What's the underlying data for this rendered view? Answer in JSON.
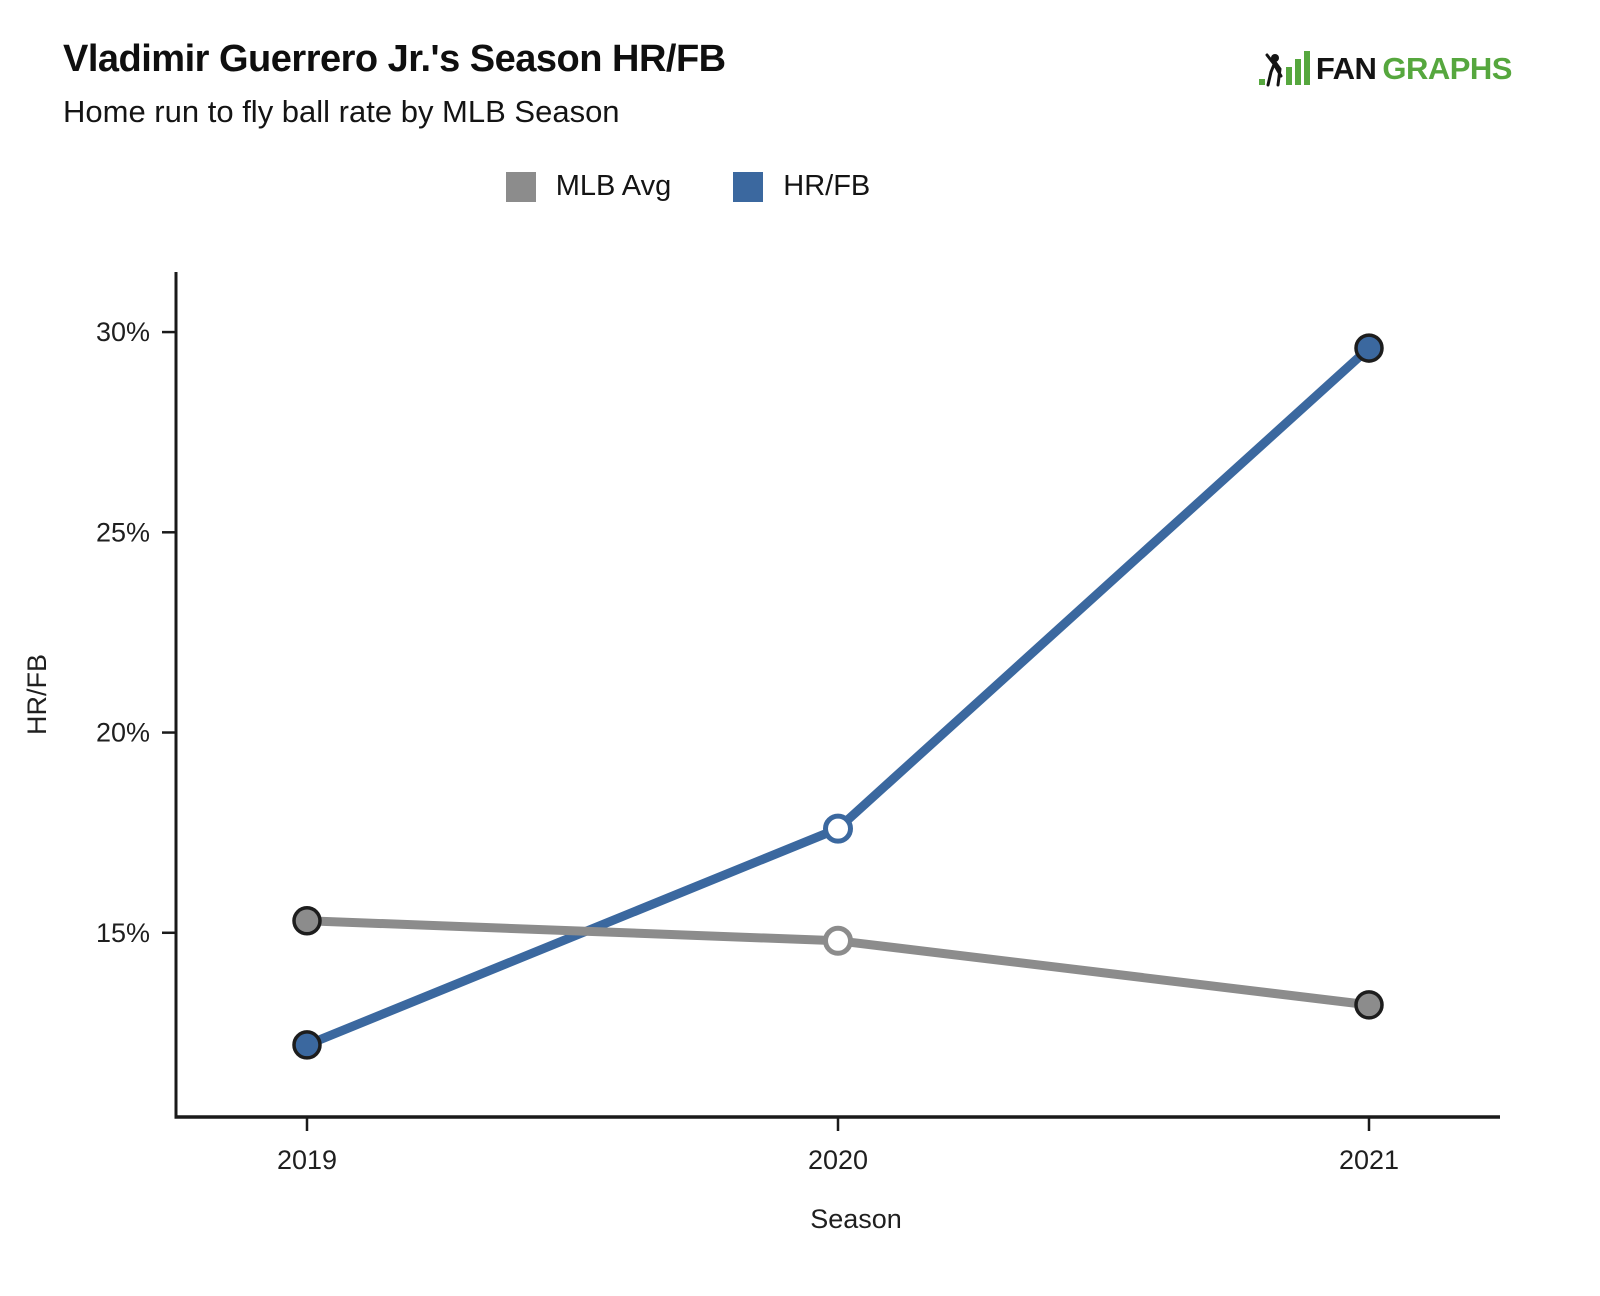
{
  "header": {
    "title": "Vladimir Guerrero Jr.'s Season HR/FB",
    "subtitle": "Home run to fly ball rate by MLB Season",
    "logo": {
      "fan": "FAN",
      "graphs": "GRAPHS",
      "green": "#56A73E",
      "black": "#1A1A1A"
    }
  },
  "chart_data": {
    "type": "line",
    "title": "Vladimir Guerrero Jr.'s Season HR/FB",
    "subtitle": "Home run to fly ball rate by MLB Season",
    "categories": [
      "2019",
      "2020",
      "2021"
    ],
    "series": [
      {
        "name": "MLB Avg",
        "color": "#8C8C8C",
        "values": [
          15.3,
          14.8,
          13.2
        ]
      },
      {
        "name": "HR/FB",
        "color": "#3B689F",
        "values": [
          12.2,
          17.6,
          29.6
        ]
      }
    ],
    "values_unit": "percent",
    "xlabel": "Season",
    "ylabel": "HR/FB",
    "yticks": [
      15,
      20,
      25,
      30
    ],
    "ytick_labels": [
      "15%",
      "20%",
      "25%",
      "30%"
    ],
    "ylim": [
      10.4,
      31.5
    ],
    "grid": false,
    "legend_position": "top-center",
    "open_marker_index": 1,
    "open_marker_category": "2020",
    "axis_color": "#1A1A1A",
    "marker_outline": "#1D1D1D"
  }
}
